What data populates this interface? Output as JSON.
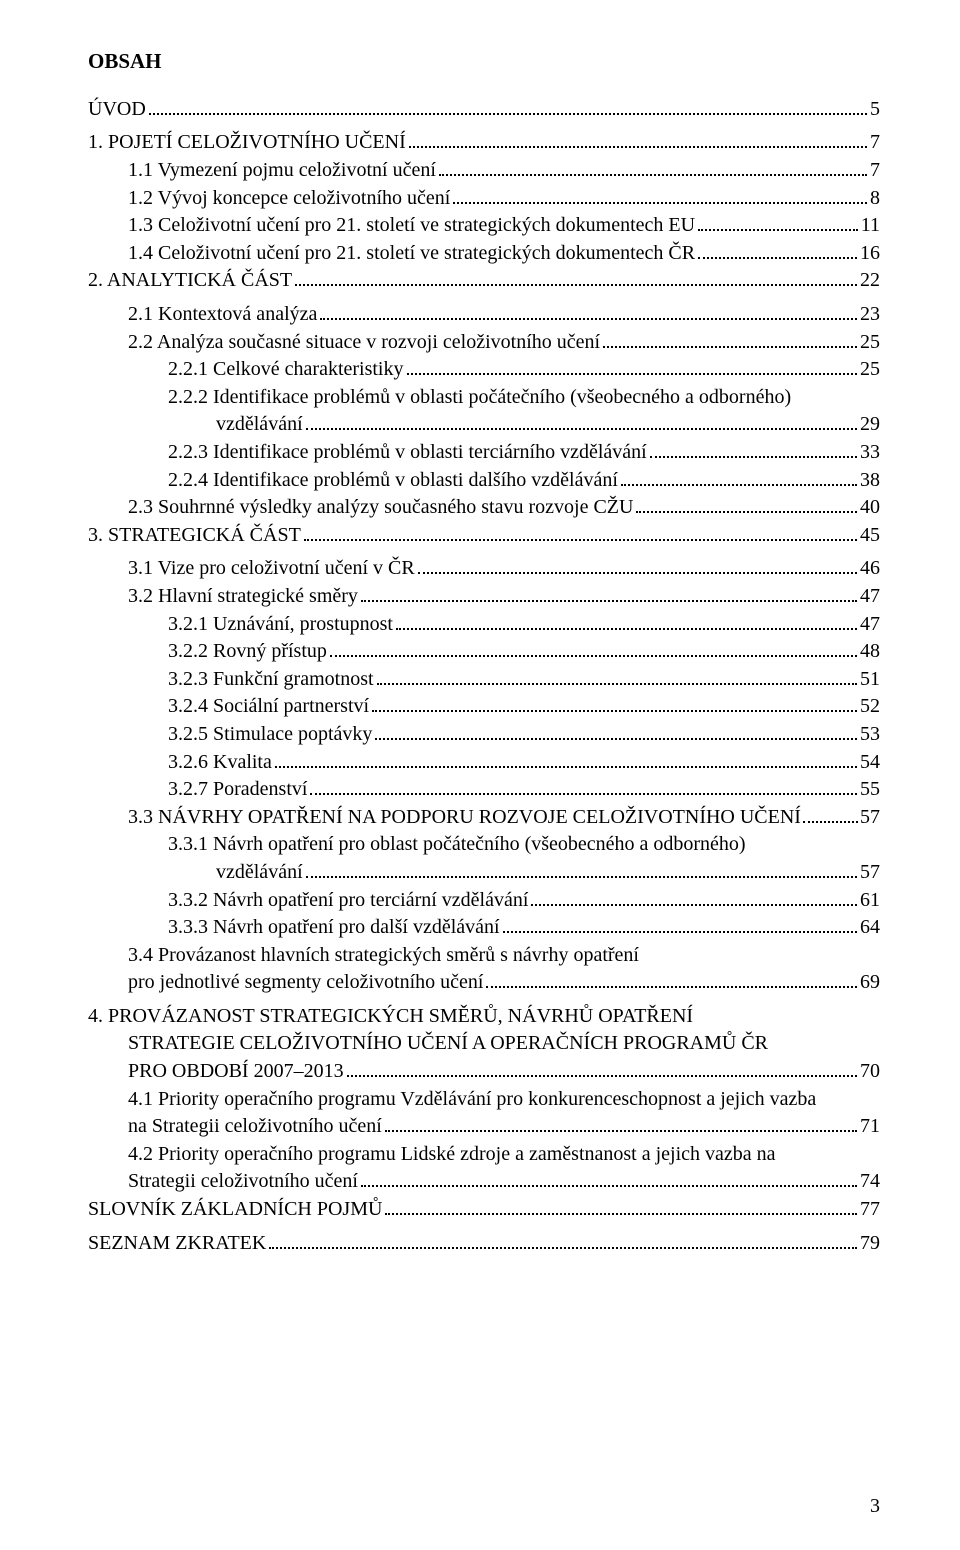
{
  "heading": "OBSAH",
  "pageNumber": "3",
  "toc": [
    {
      "indent": "lvl0",
      "label": "ÚVOD",
      "page": "5"
    },
    {
      "indent": "lvl0",
      "label": "1.    POJETÍ CELOŽIVOTNÍHO UČENÍ",
      "page": "7"
    },
    {
      "indent": "lvl1",
      "label": "1.1  Vymezení pojmu celoživotní učení",
      "page": "7"
    },
    {
      "indent": "lvl1",
      "label": "1.2  Vývoj koncepce celoživotního učení",
      "page": "8"
    },
    {
      "indent": "lvl1",
      "label": "1.3  Celoživotní učení pro 21. století ve strategických dokumentech EU",
      "page": "11"
    },
    {
      "indent": "lvl1",
      "label": "1.4  Celoživotní učení pro 21. století ve strategických dokumentech ČR",
      "page": "16"
    },
    {
      "indent": "lvl0",
      "label": "2.    ANALYTICKÁ ČÁST",
      "page": "22"
    },
    {
      "indent": "lvl1",
      "label": "2.1  Kontextová analýza",
      "page": "23"
    },
    {
      "indent": "lvl1",
      "label": "2.2  Analýza současné situace v rozvoji celoživotního učení",
      "page": "25"
    },
    {
      "indent": "lvl2",
      "label": "2.2.1  Celkové charakteristiky",
      "page": "25"
    },
    {
      "indent": "lvl2",
      "label": "2.2.2  Identifikace problémů v oblasti počátečního (všeobecného a odborného)",
      "noDots": true,
      "page": ""
    },
    {
      "indent": "lvl-hang",
      "label": "vzdělávání",
      "page": "29"
    },
    {
      "indent": "lvl2",
      "label": "2.2.3  Identifikace problémů v oblasti terciárního vzdělávání",
      "page": "33"
    },
    {
      "indent": "lvl2",
      "label": "2.2.4  Identifikace problémů v oblasti dalšího vzdělávání",
      "page": "38"
    },
    {
      "indent": "lvl1",
      "label": "2.3  Souhrnné výsledky analýzy současného stavu rozvoje CŽU",
      "page": "40"
    },
    {
      "indent": "lvl0",
      "label": "3.    STRATEGICKÁ ČÁST",
      "page": "45"
    },
    {
      "indent": "lvl1",
      "label": "3.1  Vize pro celoživotní učení v ČR",
      "page": "46"
    },
    {
      "indent": "lvl1",
      "label": "3.2  Hlavní strategické směry",
      "page": "47"
    },
    {
      "indent": "lvl2",
      "label": "3.2.1  Uznávání, prostupnost",
      "page": "47"
    },
    {
      "indent": "lvl2",
      "label": "3.2.2  Rovný přístup",
      "page": "48"
    },
    {
      "indent": "lvl2",
      "label": "3.2.3  Funkční gramotnost",
      "page": "51"
    },
    {
      "indent": "lvl2",
      "label": "3.2.4  Sociální partnerství",
      "page": "52"
    },
    {
      "indent": "lvl2",
      "label": "3.2.5  Stimulace poptávky",
      "page": "53"
    },
    {
      "indent": "lvl2",
      "label": "3.2.6  Kvalita",
      "page": "54"
    },
    {
      "indent": "lvl2",
      "label": "3.2.7  Poradenství",
      "page": "55"
    },
    {
      "indent": "lvl1",
      "label": "3.3  NÁVRHY OPATŘENÍ NA PODPORU ROZVOJE CELOŽIVOTNÍHO UČENÍ",
      "page": "57",
      "tightDots": true
    },
    {
      "indent": "lvl2",
      "label": "3.3.1  Návrh opatření pro oblast počátečního (všeobecného a odborného)",
      "noDots": true,
      "page": ""
    },
    {
      "indent": "lvl-hang",
      "label": "vzdělávání",
      "page": "57"
    },
    {
      "indent": "lvl2",
      "label": "3.3.2  Návrh opatření pro terciární vzdělávání",
      "page": "61"
    },
    {
      "indent": "lvl2",
      "label": "3.3.3  Návrh opatření pro další vzdělávání",
      "page": "64"
    },
    {
      "indent": "lvl1",
      "label": "3.4  Provázanost hlavních strategických směrů s návrhy opatření",
      "noDots": true,
      "page": ""
    },
    {
      "indent": "lvl1",
      "label": "       pro jednotlivé segmenty celoživotního učení",
      "page": "69"
    },
    {
      "indent": "lvl0",
      "label": "4.    PROVÁZANOST STRATEGICKÝCH SMĚRŮ, NÁVRHŮ OPATŘENÍ",
      "noDots": true,
      "page": ""
    },
    {
      "indent": "lvl1",
      "label": "STRATEGIE CELOŽIVOTNÍHO UČENÍ A OPERAČNÍCH PROGRAMŮ ČR",
      "noDots": true,
      "page": ""
    },
    {
      "indent": "lvl1",
      "label": "PRO OBDOBÍ 2007–2013",
      "page": "70"
    },
    {
      "indent": "lvl1",
      "label": "4.1  Priority operačního programu Vzdělávání pro konkurenceschopnost a jejich vazba",
      "noDots": true,
      "page": ""
    },
    {
      "indent": "lvl1",
      "label": "        na Strategii celoživotního učení",
      "page": "71"
    },
    {
      "indent": "lvl1",
      "label": "4.2  Priority operačního programu Lidské zdroje a zaměstnanost a jejich vazba na",
      "noDots": true,
      "page": ""
    },
    {
      "indent": "lvl1",
      "label": "        Strategii celoživotního učení",
      "page": "74"
    },
    {
      "indent": "lvl0",
      "label": "SLOVNÍK ZÁKLADNÍCH POJMŮ",
      "page": "77"
    },
    {
      "indent": "lvl0",
      "label": "SEZNAM ZKRATEK",
      "page": "79"
    }
  ],
  "gapsBefore": {
    "1": true,
    "7": true,
    "16": true,
    "32": true,
    "40": true,
    "41": true
  }
}
